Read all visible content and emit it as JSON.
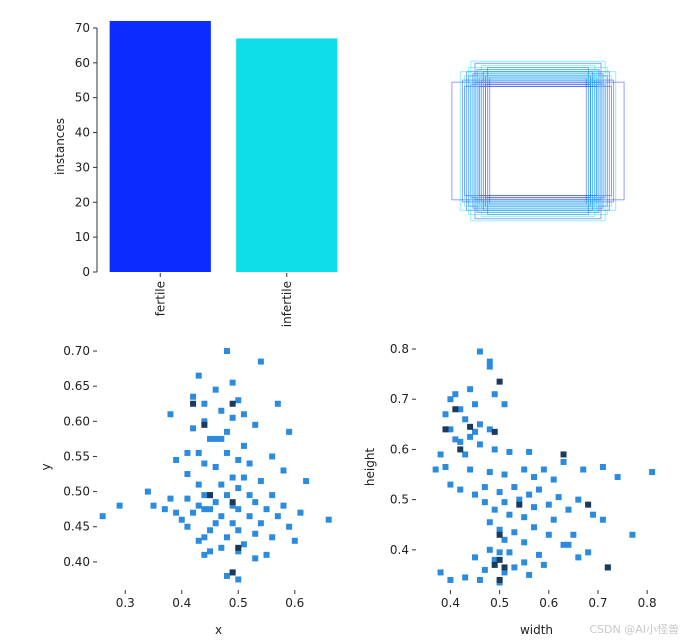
{
  "watermark": "CSDN @AI小怪兽",
  "colors": {
    "fertile": "#0b2bff",
    "infertile": "#0edde8",
    "hist_light": "#2b8cde",
    "hist_dark": "#1c3a5c",
    "axis": "#333333"
  },
  "chart_data": [
    {
      "type": "bar",
      "categories": [
        "fertile",
        "infertile"
      ],
      "values": [
        72,
        67
      ],
      "ylabel": "instances",
      "ylim": [
        0,
        72
      ],
      "yticks": [
        0,
        10,
        20,
        30,
        40,
        50,
        60,
        70
      ]
    },
    {
      "type": "rectangles",
      "description_free": true,
      "boxes": [
        {
          "w": 0.5,
          "h": 0.62,
          "c": "fertile"
        },
        {
          "w": 0.56,
          "h": 0.6,
          "c": "fertile"
        },
        {
          "w": 0.6,
          "h": 0.56,
          "c": "fertile"
        },
        {
          "w": 0.64,
          "h": 0.54,
          "c": "fertile"
        },
        {
          "w": 0.7,
          "h": 0.52,
          "c": "fertile"
        },
        {
          "w": 0.52,
          "h": 0.66,
          "c": "fertile"
        },
        {
          "w": 0.48,
          "h": 0.7,
          "c": "fertile"
        },
        {
          "w": 0.58,
          "h": 0.68,
          "c": "fertile"
        },
        {
          "w": 0.66,
          "h": 0.62,
          "c": "fertile"
        },
        {
          "w": 0.54,
          "h": 0.58,
          "c": "fertile"
        },
        {
          "w": 0.62,
          "h": 0.64,
          "c": "fertile"
        },
        {
          "w": 0.72,
          "h": 0.58,
          "c": "fertile"
        },
        {
          "w": 0.46,
          "h": 0.6,
          "c": "fertile"
        },
        {
          "w": 0.6,
          "h": 0.74,
          "c": "fertile"
        },
        {
          "w": 0.68,
          "h": 0.66,
          "c": "fertile"
        },
        {
          "w": 0.82,
          "h": 0.56,
          "c": "fertile"
        },
        {
          "w": 0.56,
          "h": 0.52,
          "c": "fertile"
        },
        {
          "w": 0.5,
          "h": 0.54,
          "c": "fertile"
        },
        {
          "w": 0.52,
          "h": 0.62,
          "c": "infertile"
        },
        {
          "w": 0.58,
          "h": 0.64,
          "c": "infertile"
        },
        {
          "w": 0.62,
          "h": 0.6,
          "c": "infertile"
        },
        {
          "w": 0.48,
          "h": 0.66,
          "c": "infertile"
        },
        {
          "w": 0.66,
          "h": 0.7,
          "c": "infertile"
        },
        {
          "w": 0.54,
          "h": 0.72,
          "c": "infertile"
        },
        {
          "w": 0.7,
          "h": 0.62,
          "c": "infertile"
        },
        {
          "w": 0.6,
          "h": 0.58,
          "c": "infertile"
        },
        {
          "w": 0.64,
          "h": 0.76,
          "c": "infertile"
        },
        {
          "w": 0.56,
          "h": 0.68,
          "c": "infertile"
        },
        {
          "w": 0.5,
          "h": 0.58,
          "c": "infertile"
        },
        {
          "w": 0.74,
          "h": 0.66,
          "c": "infertile"
        }
      ]
    },
    {
      "type": "heatmap",
      "xlabel": "x",
      "ylabel": "y",
      "xlim": [
        0.25,
        0.68
      ],
      "ylim": [
        0.36,
        0.71
      ],
      "xticks": [
        0.3,
        0.4,
        0.5,
        0.6
      ],
      "yticks": [
        0.4,
        0.45,
        0.5,
        0.55,
        0.6,
        0.65,
        0.7
      ],
      "ytick_labels": [
        "0.40",
        "0.45",
        "0.50",
        "0.55",
        "0.60",
        "0.65",
        "0.70"
      ],
      "points": [
        [
          0.48,
          0.7
        ],
        [
          0.54,
          0.685
        ],
        [
          0.43,
          0.665
        ],
        [
          0.49,
          0.655
        ],
        [
          0.46,
          0.645
        ],
        [
          0.42,
          0.635
        ],
        [
          0.5,
          0.63
        ],
        [
          0.44,
          0.625
        ],
        [
          0.57,
          0.625
        ],
        [
          0.47,
          0.615
        ],
        [
          0.51,
          0.61
        ],
        [
          0.38,
          0.61
        ],
        [
          0.49,
          0.605
        ],
        [
          0.44,
          0.6
        ],
        [
          0.53,
          0.595
        ],
        [
          0.42,
          0.59
        ],
        [
          0.48,
          0.585
        ],
        [
          0.59,
          0.585
        ],
        [
          0.45,
          0.575
        ],
        [
          0.46,
          0.575
        ],
        [
          0.47,
          0.575
        ],
        [
          0.51,
          0.565
        ],
        [
          0.41,
          0.555
        ],
        [
          0.43,
          0.555
        ],
        [
          0.48,
          0.555
        ],
        [
          0.56,
          0.55
        ],
        [
          0.5,
          0.545
        ],
        [
          0.39,
          0.545
        ],
        [
          0.44,
          0.54
        ],
        [
          0.52,
          0.54
        ],
        [
          0.46,
          0.535
        ],
        [
          0.58,
          0.53
        ],
        [
          0.41,
          0.525
        ],
        [
          0.49,
          0.52
        ],
        [
          0.51,
          0.52
        ],
        [
          0.54,
          0.515
        ],
        [
          0.62,
          0.515
        ],
        [
          0.43,
          0.51
        ],
        [
          0.47,
          0.51
        ],
        [
          0.5,
          0.505
        ],
        [
          0.34,
          0.5
        ],
        [
          0.44,
          0.495
        ],
        [
          0.45,
          0.495
        ],
        [
          0.48,
          0.495
        ],
        [
          0.52,
          0.495
        ],
        [
          0.56,
          0.495
        ],
        [
          0.38,
          0.49
        ],
        [
          0.41,
          0.49
        ],
        [
          0.46,
          0.485
        ],
        [
          0.53,
          0.485
        ],
        [
          0.29,
          0.48
        ],
        [
          0.35,
          0.48
        ],
        [
          0.43,
          0.48
        ],
        [
          0.49,
          0.48
        ],
        [
          0.58,
          0.48
        ],
        [
          0.37,
          0.475
        ],
        [
          0.44,
          0.475
        ],
        [
          0.45,
          0.475
        ],
        [
          0.5,
          0.475
        ],
        [
          0.55,
          0.475
        ],
        [
          0.61,
          0.47
        ],
        [
          0.26,
          0.465
        ],
        [
          0.39,
          0.47
        ],
        [
          0.42,
          0.47
        ],
        [
          0.47,
          0.465
        ],
        [
          0.52,
          0.465
        ],
        [
          0.57,
          0.465
        ],
        [
          0.66,
          0.46
        ],
        [
          0.4,
          0.46
        ],
        [
          0.46,
          0.455
        ],
        [
          0.49,
          0.455
        ],
        [
          0.54,
          0.455
        ],
        [
          0.59,
          0.45
        ],
        [
          0.41,
          0.45
        ],
        [
          0.45,
          0.445
        ],
        [
          0.5,
          0.445
        ],
        [
          0.53,
          0.44
        ],
        [
          0.44,
          0.435
        ],
        [
          0.48,
          0.435
        ],
        [
          0.56,
          0.435
        ],
        [
          0.43,
          0.43
        ],
        [
          0.51,
          0.425
        ],
        [
          0.47,
          0.42
        ],
        [
          0.5,
          0.415
        ],
        [
          0.44,
          0.41
        ],
        [
          0.53,
          0.405
        ],
        [
          0.49,
          0.385
        ],
        [
          0.48,
          0.38
        ],
        [
          0.5,
          0.375
        ],
        [
          0.45,
          0.415
        ],
        [
          0.55,
          0.41
        ],
        [
          0.6,
          0.43
        ]
      ],
      "dark_points": [
        [
          0.42,
          0.625
        ],
        [
          0.49,
          0.625
        ],
        [
          0.44,
          0.595
        ],
        [
          0.45,
          0.495
        ],
        [
          0.49,
          0.485
        ],
        [
          0.5,
          0.42
        ],
        [
          0.49,
          0.385
        ]
      ]
    },
    {
      "type": "heatmap",
      "xlabel": "width",
      "ylabel": "height",
      "xlim": [
        0.33,
        0.82
      ],
      "ylim": [
        0.32,
        0.81
      ],
      "xticks": [
        0.4,
        0.5,
        0.6,
        0.7,
        0.8
      ],
      "yticks": [
        0.4,
        0.5,
        0.6,
        0.7,
        0.8
      ],
      "points": [
        [
          0.46,
          0.795
        ],
        [
          0.48,
          0.775
        ],
        [
          0.48,
          0.765
        ],
        [
          0.44,
          0.72
        ],
        [
          0.49,
          0.71
        ],
        [
          0.41,
          0.71
        ],
        [
          0.4,
          0.7
        ],
        [
          0.45,
          0.69
        ],
        [
          0.42,
          0.68
        ],
        [
          0.39,
          0.67
        ],
        [
          0.51,
          0.69
        ],
        [
          0.43,
          0.66
        ],
        [
          0.46,
          0.65
        ],
        [
          0.4,
          0.64
        ],
        [
          0.45,
          0.635
        ],
        [
          0.44,
          0.625
        ],
        [
          0.48,
          0.64
        ],
        [
          0.41,
          0.62
        ],
        [
          0.42,
          0.615
        ],
        [
          0.46,
          0.61
        ],
        [
          0.49,
          0.6
        ],
        [
          0.52,
          0.595
        ],
        [
          0.38,
          0.59
        ],
        [
          0.43,
          0.59
        ],
        [
          0.56,
          0.595
        ],
        [
          0.37,
          0.56
        ],
        [
          0.39,
          0.565
        ],
        [
          0.44,
          0.56
        ],
        [
          0.48,
          0.555
        ],
        [
          0.55,
          0.56
        ],
        [
          0.59,
          0.56
        ],
        [
          0.63,
          0.575
        ],
        [
          0.67,
          0.56
        ],
        [
          0.71,
          0.565
        ],
        [
          0.51,
          0.55
        ],
        [
          0.57,
          0.545
        ],
        [
          0.61,
          0.54
        ],
        [
          0.74,
          0.545
        ],
        [
          0.81,
          0.555
        ],
        [
          0.4,
          0.53
        ],
        [
          0.47,
          0.525
        ],
        [
          0.53,
          0.525
        ],
        [
          0.58,
          0.52
        ],
        [
          0.42,
          0.52
        ],
        [
          0.5,
          0.515
        ],
        [
          0.56,
          0.51
        ],
        [
          0.62,
          0.505
        ],
        [
          0.45,
          0.51
        ],
        [
          0.54,
          0.5
        ],
        [
          0.47,
          0.495
        ],
        [
          0.51,
          0.495
        ],
        [
          0.66,
          0.5
        ],
        [
          0.6,
          0.49
        ],
        [
          0.49,
          0.48
        ],
        [
          0.57,
          0.485
        ],
        [
          0.64,
          0.48
        ],
        [
          0.52,
          0.47
        ],
        [
          0.69,
          0.47
        ],
        [
          0.71,
          0.46
        ],
        [
          0.55,
          0.465
        ],
        [
          0.61,
          0.46
        ],
        [
          0.48,
          0.455
        ],
        [
          0.5,
          0.44
        ],
        [
          0.57,
          0.445
        ],
        [
          0.53,
          0.435
        ],
        [
          0.6,
          0.43
        ],
        [
          0.65,
          0.43
        ],
        [
          0.77,
          0.43
        ],
        [
          0.51,
          0.42
        ],
        [
          0.55,
          0.415
        ],
        [
          0.63,
          0.41
        ],
        [
          0.64,
          0.41
        ],
        [
          0.48,
          0.4
        ],
        [
          0.5,
          0.395
        ],
        [
          0.52,
          0.395
        ],
        [
          0.58,
          0.39
        ],
        [
          0.68,
          0.395
        ],
        [
          0.45,
          0.385
        ],
        [
          0.49,
          0.38
        ],
        [
          0.55,
          0.375
        ],
        [
          0.53,
          0.365
        ],
        [
          0.47,
          0.36
        ],
        [
          0.51,
          0.355
        ],
        [
          0.56,
          0.35
        ],
        [
          0.4,
          0.34
        ],
        [
          0.43,
          0.345
        ],
        [
          0.46,
          0.34
        ],
        [
          0.5,
          0.335
        ],
        [
          0.59,
          0.37
        ],
        [
          0.66,
          0.385
        ],
        [
          0.72,
          0.365
        ],
        [
          0.38,
          0.355
        ]
      ],
      "dark_points": [
        [
          0.39,
          0.64
        ],
        [
          0.41,
          0.68
        ],
        [
          0.49,
          0.635
        ],
        [
          0.44,
          0.645
        ],
        [
          0.42,
          0.6
        ],
        [
          0.5,
          0.735
        ],
        [
          0.63,
          0.59
        ],
        [
          0.54,
          0.49
        ],
        [
          0.68,
          0.49
        ],
        [
          0.5,
          0.43
        ],
        [
          0.5,
          0.38
        ],
        [
          0.49,
          0.37
        ],
        [
          0.51,
          0.365
        ],
        [
          0.5,
          0.34
        ],
        [
          0.72,
          0.365
        ]
      ]
    }
  ]
}
